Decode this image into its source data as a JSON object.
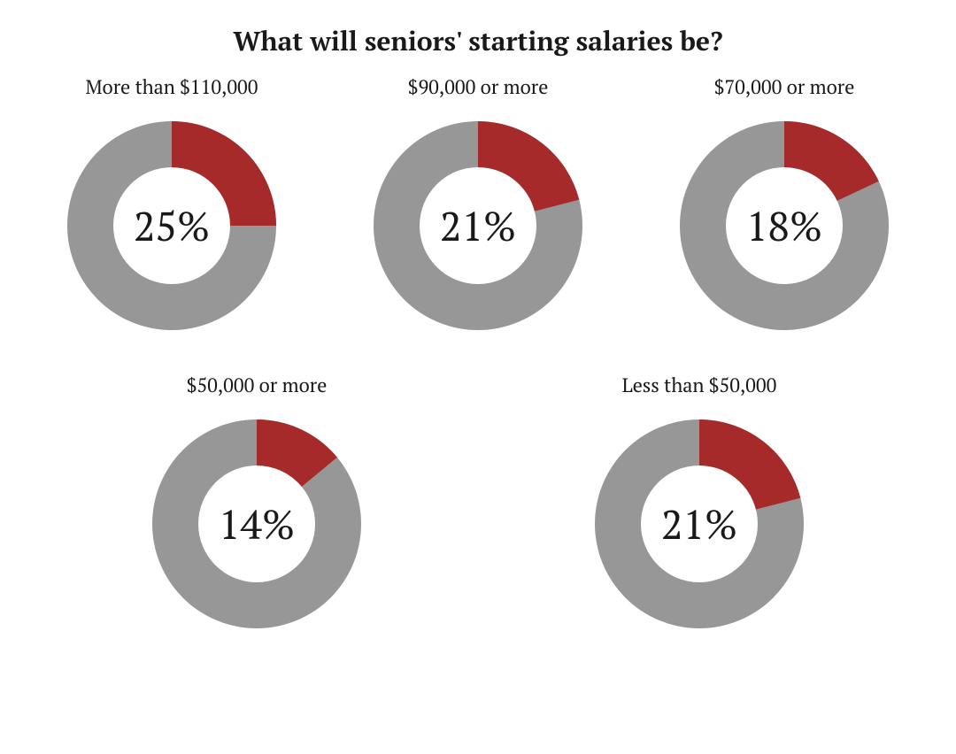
{
  "title": "What will seniors' starting salaries be?",
  "colors": {
    "background": "#ffffff",
    "ring_bg": "#979797",
    "accent": "#a72a2a",
    "text": "#191919"
  },
  "donut": {
    "size": 248,
    "outer_radius": 118,
    "inner_radius": 66,
    "pct_fontsize": 46,
    "label_fontsize": 22,
    "title_fontsize": 30
  },
  "items": [
    {
      "label": "More than $110,000",
      "pct_text": "25%",
      "value": 25
    },
    {
      "label": "$90,000 or more",
      "pct_text": "21%",
      "value": 21
    },
    {
      "label": "$70,000 or more",
      "pct_text": "18%",
      "value": 18
    },
    {
      "label": "$50,000 or more",
      "pct_text": "14%",
      "value": 14
    },
    {
      "label": "Less than $50,000",
      "pct_text": "21%",
      "value": 21
    }
  ],
  "layout": {
    "row1_indices": [
      0,
      1,
      2
    ],
    "row2_indices": [
      3,
      4
    ]
  }
}
